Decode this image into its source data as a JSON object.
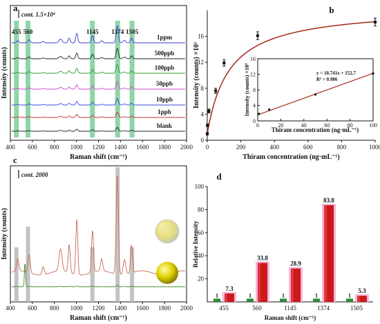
{
  "figure": {
    "chart_data": [
      {
        "id": "a",
        "type": "line",
        "panel_label": "a",
        "xlabel": "Raman shift (cm⁻¹)",
        "ylabel": "Intensity (counts)",
        "xlim": [
          400,
          2000
        ],
        "x_ticks": [
          400,
          600,
          800,
          1000,
          1200,
          1400,
          1600,
          1800,
          2000
        ],
        "scale_bar_label": "cont. 1.5×10⁴",
        "highlight_bands": [
          455,
          560,
          1145,
          1374,
          1505
        ],
        "highlight_labels": [
          "455",
          "560",
          "1145",
          "1374",
          "1505"
        ],
        "series": [
          {
            "name": "1ppm",
            "color": "#3a3ad8",
            "scale": 1.0
          },
          {
            "name": "500ppb",
            "color": "#222222",
            "scale": 0.55
          },
          {
            "name": "100ppb",
            "color": "#2a9a2a",
            "scale": 0.45
          },
          {
            "name": "50ppb",
            "color": "#cc44cc",
            "scale": 0.38
          },
          {
            "name": "10ppb",
            "color": "#3a4ad8",
            "scale": 0.3
          },
          {
            "name": "1ppb",
            "color": "#c03030",
            "scale": 0.22
          },
          {
            "name": "blank",
            "color": "#222222",
            "scale": 0.12
          }
        ]
      },
      {
        "id": "b",
        "type": "scatter",
        "panel_label": "b",
        "xlabel": "Thiram concentration (ng·mL⁻¹)",
        "ylabel": "Intensity (counts) ×10³",
        "xlim": [
          0,
          1000
        ],
        "ylim": [
          0,
          20
        ],
        "x_ticks": [
          0,
          200,
          400,
          600,
          800,
          1000
        ],
        "y_ticks": [
          0,
          4,
          8,
          12,
          16
        ],
        "x": [
          0,
          1,
          10,
          50,
          100,
          300,
          1000
        ],
        "y": [
          1.0,
          2.3,
          4.5,
          7.6,
          11.9,
          16.1,
          18.2
        ],
        "yerr": [
          0.2,
          0.2,
          0.3,
          0.4,
          0.5,
          0.6,
          0.6
        ],
        "inset": {
          "xlabel": "Thiram concentration (ng·mL⁻¹)",
          "ylabel": "Intensity (counts) ×10³",
          "xlim": [
            0,
            100
          ],
          "ylim": [
            0,
            16
          ],
          "x_ticks": [
            0,
            20,
            40,
            60,
            80,
            100
          ],
          "y_ticks": [
            0,
            4,
            8,
            12,
            16
          ],
          "x": [
            1,
            10,
            50,
            100
          ],
          "y": [
            1.8,
            2.9,
            6.8,
            12.2
          ],
          "equation": "y = 10.741x + 152.7",
          "r_squared": "R² = 0.986"
        }
      },
      {
        "id": "c",
        "type": "line",
        "panel_label": "c",
        "xlabel": "Raman shift (cm⁻¹)",
        "ylabel": "Intensity (counts)",
        "xlim": [
          400,
          2000
        ],
        "x_ticks": [
          400,
          600,
          800,
          1000,
          1200,
          1400,
          1600,
          1800,
          2000
        ],
        "scale_bar_label": "cont. 2000",
        "highlight_bands": [
          455,
          560,
          1145,
          1374,
          1505
        ],
        "series": [
          {
            "name": "",
            "color": "#c86a50"
          },
          {
            "name": "",
            "color": "#3f8a2a"
          }
        ]
      },
      {
        "id": "d",
        "type": "bar",
        "panel_label": "d",
        "xlabel": "Raman shift (cm⁻¹)",
        "ylabel": "Relative Intensity",
        "ylim": [
          0,
          100
        ],
        "y_ticks": [
          20,
          40,
          60,
          80,
          100
        ],
        "categories": [
          "455",
          "560",
          "1145",
          "1374",
          "1505"
        ],
        "series": [
          {
            "name": "",
            "color": "#2e8b3a",
            "values": [
              1,
              1,
              1,
              1,
              1
            ],
            "labels": [
              "1",
              "1",
              "1",
              "1",
              "1"
            ]
          },
          {
            "name": "",
            "color": "#cc1a1a",
            "values": [
              7.3,
              33.8,
              28.9,
              83.8,
              5.3
            ],
            "labels": [
              "7.3",
              "33.8",
              "28.9",
              "83.8",
              "5.3"
            ]
          }
        ]
      }
    ]
  }
}
